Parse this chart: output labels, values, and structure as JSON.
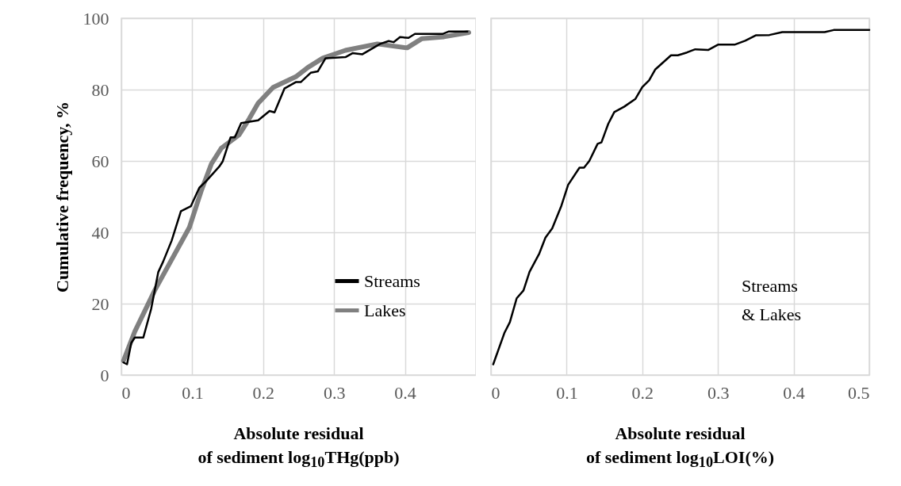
{
  "chart_data": [
    {
      "type": "line",
      "ylabel": "Cumulative frequency, %",
      "xlabel": "Absolute residual\nof sediment log$_{10}$THg(ppb)",
      "xlim": [
        0,
        0.5
      ],
      "xticks": [
        0,
        0.1,
        0.2,
        0.3,
        0.4
      ],
      "ylim": [
        0,
        100
      ],
      "yticks": [
        0,
        20,
        40,
        60,
        80,
        100
      ],
      "grid": true,
      "legend": "bottom right",
      "line_style": "solid",
      "series": [
        {
          "name": "Streams",
          "color": "#000000",
          "x": [
            0.003,
            0.008,
            0.014,
            0.019,
            0.031,
            0.042,
            0.052,
            0.059,
            0.071,
            0.084,
            0.098,
            0.11,
            0.12,
            0.138,
            0.143,
            0.154,
            0.16,
            0.169,
            0.193,
            0.209,
            0.216,
            0.23,
            0.246,
            0.253,
            0.267,
            0.277,
            0.288,
            0.316,
            0.326,
            0.34,
            0.365,
            0.377,
            0.384,
            0.393,
            0.405,
            0.414,
            0.453,
            0.462,
            0.488
          ],
          "values": [
            3.5,
            3,
            9,
            10.5,
            10.5,
            18.5,
            28.8,
            31.8,
            37.7,
            45.9,
            47.3,
            52.5,
            54.4,
            58.4,
            59.9,
            66.6,
            66.6,
            70.6,
            71.4,
            74,
            73.6,
            80.3,
            82.1,
            82.1,
            84.7,
            85.1,
            88.8,
            89.1,
            90.2,
            89.9,
            92.8,
            93.6,
            93.3,
            94.7,
            94.5,
            95.6,
            95.6,
            96.3,
            96.3
          ]
        },
        {
          "name": "Lakes",
          "color": "#808080",
          "x": [
            0.003,
            0.019,
            0.047,
            0.096,
            0.113,
            0.127,
            0.141,
            0.166,
            0.18,
            0.193,
            0.214,
            0.246,
            0.263,
            0.284,
            0.316,
            0.361,
            0.403,
            0.424,
            0.455,
            0.49
          ],
          "values": [
            4,
            12.2,
            23.7,
            41.4,
            51.8,
            59.2,
            63.6,
            67.3,
            71.7,
            76.2,
            80.6,
            83.6,
            86.2,
            88.8,
            91,
            92.8,
            91.7,
            94.3,
            94.8,
            96
          ]
        }
      ]
    },
    {
      "type": "line",
      "xlabel": "Absolute residual\nof sediment log$_{10}$LOI(%)",
      "xlim": [
        0,
        0.5
      ],
      "xticks": [
        0,
        0.1,
        0.2,
        0.3,
        0.4,
        0.5
      ],
      "ylim": [
        0,
        100
      ],
      "yticks": [
        0,
        20,
        40,
        60,
        80,
        100
      ],
      "grid": true,
      "tick_labels": "x",
      "line_style": "solid",
      "annotations": [
        "Streams\n& Lakes"
      ],
      "series": [
        {
          "color": "#000000",
          "x": [
            0.003,
            0.018,
            0.025,
            0.034,
            0.043,
            0.051,
            0.064,
            0.072,
            0.081,
            0.093,
            0.102,
            0.117,
            0.123,
            0.13,
            0.141,
            0.146,
            0.155,
            0.163,
            0.176,
            0.191,
            0.2,
            0.209,
            0.217,
            0.238,
            0.247,
            0.259,
            0.27,
            0.287,
            0.3,
            0.322,
            0.336,
            0.35,
            0.368,
            0.385,
            0.441,
            0.453,
            0.5
          ],
          "values": [
            3,
            11.9,
            14.8,
            21.5,
            23.7,
            28.9,
            34.1,
            38.5,
            41.1,
            47.4,
            53.3,
            58.1,
            58.1,
            60,
            64.8,
            65.2,
            70.4,
            73.7,
            75.2,
            77.4,
            80.7,
            82.6,
            85.6,
            89.6,
            89.6,
            90.4,
            91.3,
            91.1,
            92.6,
            92.6,
            93.7,
            95.2,
            95.3,
            96.1,
            96.1,
            96.7,
            96.7
          ]
        }
      ]
    }
  ]
}
